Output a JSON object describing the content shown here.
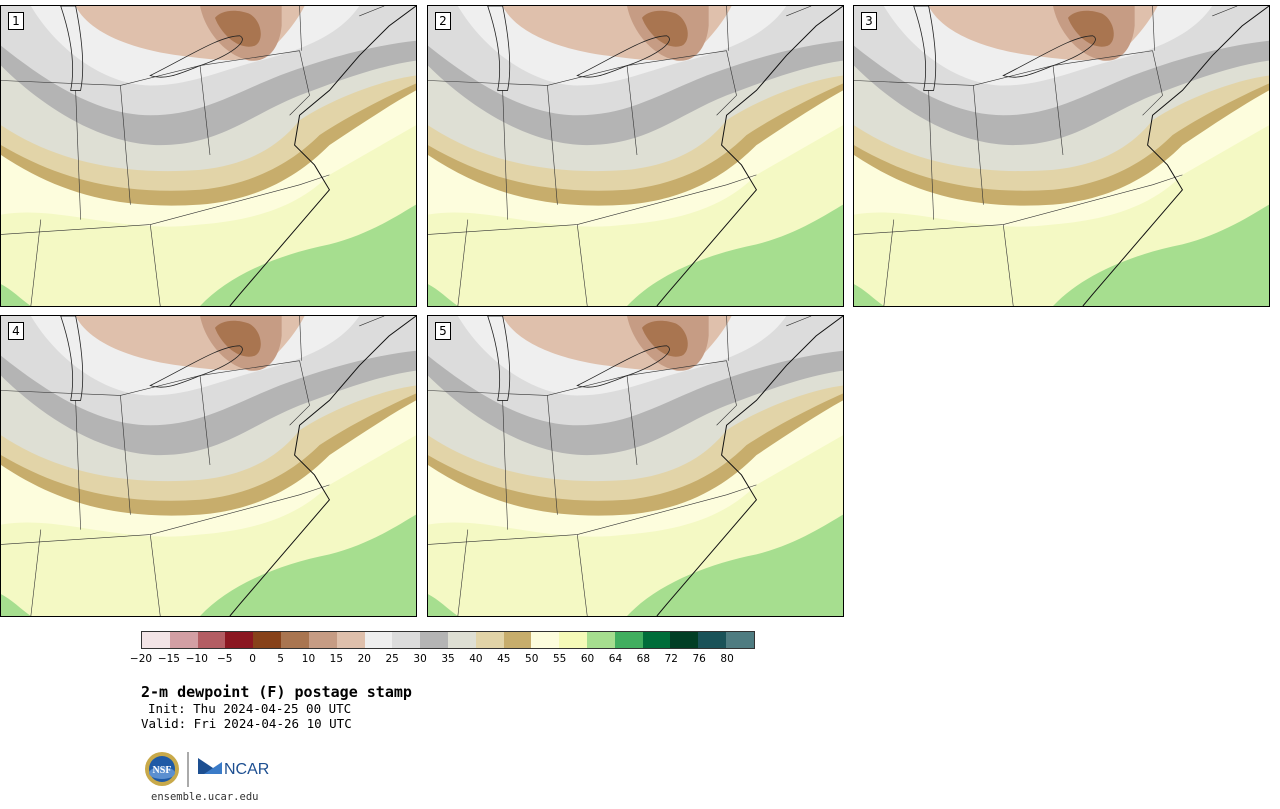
{
  "panels": [
    {
      "label": "1"
    },
    {
      "label": "2"
    },
    {
      "label": "3"
    },
    {
      "label": "4"
    },
    {
      "label": "5"
    }
  ],
  "colorbar": {
    "colors": [
      "#f3e4e6",
      "#d39fa4",
      "#b35d63",
      "#8b1721",
      "#87421a",
      "#a97550",
      "#c69c84",
      "#dfc0ac",
      "#efefef",
      "#dcdcdc",
      "#b4b4b4",
      "#dedfd4",
      "#e2d4a8",
      "#c7ad6c",
      "#fdfddd",
      "#f5fab8",
      "#a6de8f",
      "#41ae5f",
      "#006d3a",
      "#023e25",
      "#1a5258",
      "#4f7c81"
    ],
    "tick_labels": [
      "−20",
      "−15",
      "−10",
      "−5",
      "0",
      "5",
      "10",
      "15",
      "20",
      "25",
      "30",
      "35",
      "40",
      "45",
      "50",
      "55",
      "60",
      "64",
      "68",
      "72",
      "76",
      "80"
    ]
  },
  "title": "2-m dewpoint (F) postage stamp",
  "init": "Init: Thu 2024-04-25 00 UTC",
  "valid": "Valid: Fri 2024-04-26 10 UTC",
  "logos": {
    "nsf": "NSF",
    "ncar": "NCAR"
  },
  "site": "ensemble.ucar.edu"
}
